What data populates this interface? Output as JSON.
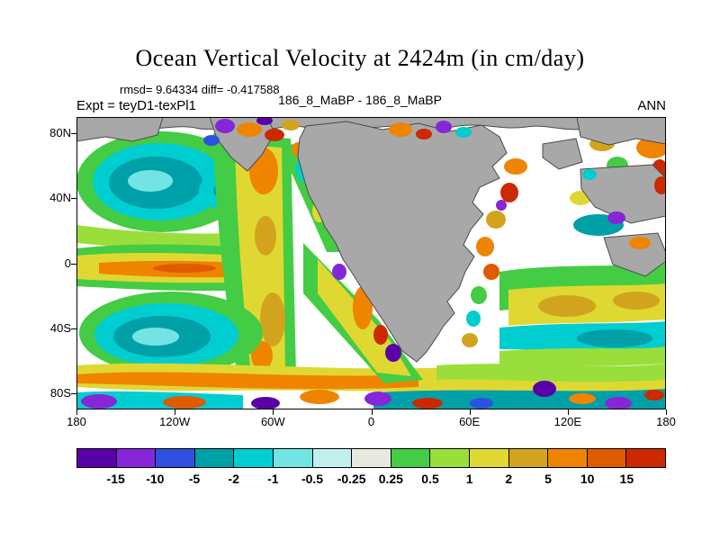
{
  "header": {
    "title": "Ocean Vertical Velocity at 2424m (in cm/day)",
    "stats": "rmsd= 9.64334 diff= -0.417588",
    "experiment": "Expt = teyD1-texPl1",
    "run_label": "186_8_MaBP - 186_8_MaBP",
    "season": "ANN"
  },
  "chart_data": {
    "type": "heatmap",
    "subtype": "filled-contour world map, paleogeography, land masked gray",
    "title": "Ocean Vertical Velocity at 2424m (in cm/day)",
    "subtitle": "rmsd= 9.64334 diff= -0.417588",
    "annotations": [
      "Expt = teyD1-texPl1",
      "186_8_MaBP - 186_8_MaBP",
      "ANN"
    ],
    "units": "cm/day",
    "depth": "2424m",
    "stats": {
      "rmsd": 9.64334,
      "diff": -0.417588
    },
    "xlim": [
      -180,
      180
    ],
    "ylim": [
      -90,
      90
    ],
    "x_ticks": [
      "180",
      "120W",
      "60W",
      "0",
      "60E",
      "120E",
      "180"
    ],
    "y_ticks": [
      "80N",
      "40N",
      "0",
      "40S",
      "80S"
    ],
    "y_tick_lats": [
      80,
      40,
      0,
      -40,
      -80
    ],
    "grid": false,
    "legend_position": "bottom-horizontal-colorbar",
    "land_color": "#a8a8a8",
    "ocean_background": "#ffffff",
    "colorbar": {
      "levels": [
        -15,
        -10,
        -5,
        -2,
        -1,
        -0.5,
        -0.25,
        0.25,
        0.5,
        1,
        2,
        5,
        10,
        15
      ],
      "labels": [
        "-15",
        "-10",
        "-5",
        "-2",
        "-1",
        "-0.5",
        "-0.25",
        "0.25",
        "0.5",
        "1",
        "2",
        "5",
        "10",
        "15"
      ],
      "colors": [
        "#5a00a8",
        "#8726d8",
        "#2e50e0",
        "#00a0a8",
        "#00cdd0",
        "#72e4e4",
        "#bff0ee",
        "#e8e8e0",
        "#44cc44",
        "#9ade3c",
        "#e0d832",
        "#d2a41e",
        "#ef8400",
        "#e05a00",
        "#cc2900"
      ]
    }
  }
}
